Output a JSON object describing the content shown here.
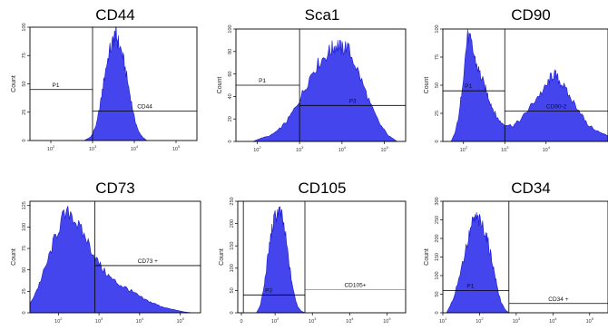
{
  "chart_data": [
    {
      "type": "histogram",
      "title": "CD44",
      "ylabel": "Count",
      "y_ticks": [
        "0",
        "25",
        "50",
        "75",
        "100"
      ],
      "ylim": [
        0,
        100
      ],
      "x_ticks": [
        "10^1",
        "10^2",
        "10^3",
        "10^4",
        "10^5"
      ],
      "xlim_log10": [
        1.5,
        5.5
      ],
      "gates": [
        {
          "label": "P1",
          "from": 1.5,
          "to": 3.0,
          "level": 45
        },
        {
          "label": "CD44",
          "from": 3.0,
          "to": 5.5,
          "level": 26
        }
      ],
      "histogram": {
        "x": [
          2.8,
          2.95,
          3.0,
          3.1,
          3.2,
          3.3,
          3.4,
          3.5,
          3.55,
          3.6,
          3.7,
          3.8,
          3.9,
          4.0,
          4.1,
          4.2,
          4.3
        ],
        "y": [
          0,
          3,
          6,
          15,
          35,
          60,
          78,
          88,
          95,
          88,
          78,
          60,
          40,
          20,
          8,
          3,
          0
        ]
      }
    },
    {
      "type": "histogram",
      "title": "Sca1",
      "ylabel": "Count",
      "y_ticks": [
        "0",
        "20",
        "40",
        "60",
        "80",
        "100"
      ],
      "ylim": [
        0,
        100
      ],
      "x_ticks": [
        "10^1",
        "10^2",
        "10^3",
        "10^4",
        "10^5"
      ],
      "xlim_log10": [
        1.5,
        5.5
      ],
      "gates": [
        {
          "label": "P1",
          "from": 1.5,
          "to": 3.0,
          "level": 50
        },
        {
          "label": "P3",
          "from": 3.0,
          "to": 5.5,
          "level": 32
        }
      ],
      "histogram": {
        "x": [
          1.9,
          2.1,
          2.3,
          2.5,
          2.7,
          2.9,
          3.1,
          3.3,
          3.5,
          3.7,
          3.8,
          3.9,
          4.0,
          4.1,
          4.3,
          4.5,
          4.7,
          4.9,
          5.1,
          5.3
        ],
        "y": [
          0,
          3,
          5,
          10,
          18,
          30,
          45,
          62,
          72,
          80,
          84,
          86,
          82,
          85,
          70,
          50,
          30,
          15,
          5,
          0
        ]
      }
    },
    {
      "type": "histogram",
      "title": "CD90",
      "ylabel": "Count",
      "y_ticks": [
        "0",
        "25",
        "50",
        "75",
        "100"
      ],
      "ylim": [
        0,
        100
      ],
      "x_ticks": [
        "10^2",
        "10^3",
        "10^4"
      ],
      "xlim_log10": [
        1.5,
        5.5
      ],
      "gates": [
        {
          "label": "P1",
          "from": 1.5,
          "to": 3.0,
          "level": 45
        },
        {
          "label": "CD90-2",
          "from": 3.0,
          "to": 5.5,
          "level": 27
        }
      ],
      "histogram": {
        "x": [
          1.7,
          1.8,
          1.9,
          2.0,
          2.1,
          2.2,
          2.3,
          2.4,
          2.5,
          2.6,
          2.7,
          2.8,
          2.9,
          3.0,
          3.2,
          3.4,
          3.6,
          3.8,
          4.0,
          4.1,
          4.2,
          4.3,
          4.4,
          4.6,
          4.8,
          5.0,
          5.3,
          5.5
        ],
        "y": [
          0,
          8,
          25,
          60,
          95,
          85,
          70,
          60,
          50,
          40,
          30,
          22,
          17,
          15,
          14,
          20,
          30,
          40,
          48,
          56,
          60,
          55,
          50,
          38,
          28,
          15,
          8,
          5
        ]
      }
    },
    {
      "type": "histogram",
      "title": "CD73",
      "ylabel": "Count",
      "y_ticks": [
        "0",
        "25",
        "50",
        "75",
        "100",
        "125"
      ],
      "ylim": [
        0,
        130
      ],
      "x_ticks": [
        "10^2",
        "10^3",
        "10^4",
        "10^5"
      ],
      "xlim_log10": [
        1.3,
        5.5
      ],
      "gates": [
        {
          "label": "CD73 +",
          "from": 2.9,
          "to": 5.5,
          "level": 55
        }
      ],
      "histogram": {
        "x": [
          1.3,
          1.5,
          1.7,
          1.9,
          2.1,
          2.3,
          2.5,
          2.7,
          2.9,
          3.1,
          3.3,
          3.5,
          3.7,
          3.9,
          4.1,
          4.3,
          4.5,
          4.7,
          4.9,
          5.1,
          5.3
        ],
        "y": [
          10,
          30,
          55,
          85,
          110,
          118,
          100,
          85,
          65,
          50,
          40,
          33,
          28,
          22,
          16,
          12,
          8,
          5,
          3,
          1,
          0
        ]
      }
    },
    {
      "type": "histogram",
      "title": "CD105",
      "ylabel": "Count",
      "y_ticks": [
        "0",
        "50",
        "100",
        "150",
        "200",
        "250"
      ],
      "ylim": [
        0,
        250
      ],
      "x_ticks": [
        "0",
        "10^2",
        "10^3",
        "10^4",
        "10^5"
      ],
      "xlim_log10": [
        1.0,
        5.5
      ],
      "gates": [
        {
          "label": "P3",
          "from": 1.15,
          "to": 2.8,
          "level": 40
        },
        {
          "label": "CD105+",
          "from": 2.8,
          "to": 5.5,
          "level": 52
        }
      ],
      "histogram": {
        "x": [
          1.5,
          1.6,
          1.7,
          1.8,
          1.9,
          2.0,
          2.1,
          2.2,
          2.3,
          2.4,
          2.5,
          2.6,
          2.7,
          2.8
        ],
        "y": [
          0,
          15,
          55,
          120,
          180,
          215,
          230,
          210,
          160,
          95,
          45,
          15,
          4,
          0
        ]
      }
    },
    {
      "type": "histogram",
      "title": "CD34",
      "ylabel": "Count",
      "y_ticks": [
        "0",
        "50",
        "100",
        "150",
        "200",
        "250",
        "300"
      ],
      "ylim": [
        0,
        300
      ],
      "x_ticks": [
        "10^1",
        "10^2",
        "10^3",
        "10^4",
        "10^5"
      ],
      "xlim_log10": [
        1.0,
        5.5
      ],
      "gates": [
        {
          "label": "P1",
          "from": 1.0,
          "to": 2.8,
          "level": 60
        },
        {
          "label": "CD34 +",
          "from": 2.8,
          "to": 5.5,
          "level": 25
        }
      ],
      "histogram": {
        "x": [
          1.1,
          1.3,
          1.5,
          1.7,
          1.8,
          1.9,
          2.0,
          2.1,
          2.2,
          2.3,
          2.4,
          2.5,
          2.6,
          2.7,
          2.8
        ],
        "y": [
          0,
          40,
          120,
          200,
          240,
          255,
          245,
          230,
          200,
          160,
          110,
          60,
          25,
          8,
          0
        ]
      }
    }
  ],
  "colors": {
    "fill": "#4545ee",
    "stroke": "#1a1acc",
    "axis": "#000000",
    "gate": "#000000",
    "gate_light": "#9a9a9a"
  }
}
